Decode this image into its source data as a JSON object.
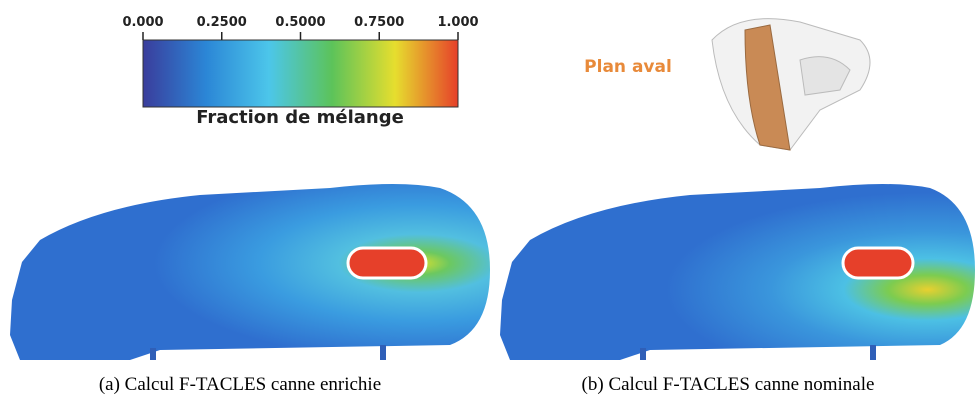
{
  "colorbar": {
    "lim": [
      0,
      1
    ],
    "ticks": [
      {
        "value": 0,
        "label": "0.000"
      },
      {
        "value": 0.25,
        "label": "0.2500"
      },
      {
        "value": 0.5,
        "label": "0.5000"
      },
      {
        "value": 0.75,
        "label": "0.7500"
      },
      {
        "value": 1,
        "label": "1.000"
      }
    ],
    "label": "Fraction de mélange",
    "colors": [
      "#3a3d9c",
      "#2b86d6",
      "#4cc6ea",
      "#5cc35a",
      "#e6de2e",
      "#e6402a"
    ]
  },
  "inset": {
    "label": "Plan aval"
  },
  "captions": [
    "(a) Calcul F-TACLES canne enrichie",
    "(b) Calcul F-TACLES canne nominale"
  ]
}
